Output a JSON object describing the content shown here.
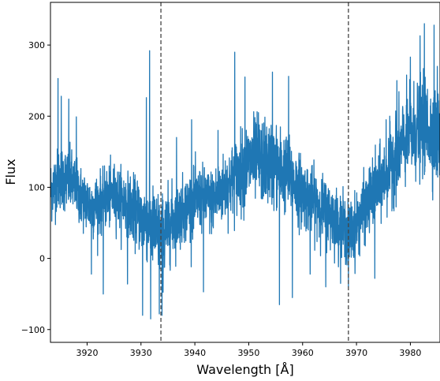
{
  "chart_data": {
    "type": "line",
    "title": "",
    "xlabel": "Wavelength [Å]",
    "ylabel": "Flux",
    "xlim": [
      3913.2,
      3985.5
    ],
    "ylim": [
      -118,
      360
    ],
    "x_ticks": [
      3920,
      3930,
      3940,
      3950,
      3960,
      3970,
      3980
    ],
    "y_ticks": [
      -100,
      0,
      100,
      200,
      300
    ],
    "x_tick_labels": [
      "3920",
      "3930",
      "3940",
      "3950",
      "3960",
      "3970",
      "3980"
    ],
    "y_tick_labels": [
      "−100",
      "0",
      "100",
      "200",
      "300"
    ],
    "grid": false,
    "legend": "none",
    "series": [
      {
        "color": "#1f77b4",
        "trend": {
          "x": [
            3913.2,
            3915,
            3917,
            3919,
            3921,
            3923,
            3925,
            3927,
            3929,
            3931,
            3933,
            3933.8,
            3935,
            3937,
            3939,
            3941,
            3943,
            3945,
            3947,
            3949,
            3951,
            3953,
            3955,
            3957,
            3959,
            3961,
            3963,
            3965,
            3967,
            3968.5,
            3969.5,
            3971,
            3973,
            3975,
            3977,
            3979,
            3981,
            3983,
            3985.5
          ],
          "y": [
            95,
            115,
            108,
            85,
            72,
            82,
            90,
            80,
            65,
            52,
            38,
            25,
            45,
            62,
            75,
            85,
            80,
            95,
            110,
            125,
            140,
            135,
            130,
            120,
            100,
            85,
            75,
            62,
            48,
            35,
            40,
            62,
            90,
            112,
            140,
            165,
            180,
            185,
            170
          ]
        },
        "noise_amplitude": [
          40,
          40,
          40,
          38,
          38,
          38,
          38,
          38,
          42,
          48,
          52,
          55,
          48,
          42,
          40,
          40,
          40,
          42,
          45,
          50,
          52,
          52,
          52,
          48,
          45,
          42,
          40,
          40,
          40,
          40,
          40,
          40,
          42,
          45,
          50,
          55,
          58,
          58,
          58
        ],
        "spikes": [
          {
            "x": 3914.6,
            "y": 253
          },
          {
            "x": 3915.2,
            "y": 228
          },
          {
            "x": 3916.6,
            "y": 224
          },
          {
            "x": 3918.0,
            "y": 199
          },
          {
            "x": 3920.8,
            "y": -22
          },
          {
            "x": 3923.0,
            "y": -50
          },
          {
            "x": 3927.5,
            "y": -36
          },
          {
            "x": 3930.3,
            "y": -80
          },
          {
            "x": 3931.0,
            "y": 226
          },
          {
            "x": 3931.6,
            "y": 292
          },
          {
            "x": 3931.8,
            "y": -85
          },
          {
            "x": 3933.4,
            "y": -78
          },
          {
            "x": 3933.9,
            "y": -80
          },
          {
            "x": 3936.6,
            "y": 170
          },
          {
            "x": 3939.4,
            "y": 195
          },
          {
            "x": 3941.6,
            "y": -47
          },
          {
            "x": 3944.3,
            "y": 180
          },
          {
            "x": 3947.4,
            "y": 290
          },
          {
            "x": 3949.3,
            "y": 255
          },
          {
            "x": 3951.8,
            "y": 205
          },
          {
            "x": 3954.4,
            "y": 262
          },
          {
            "x": 3955.7,
            "y": -65
          },
          {
            "x": 3957.4,
            "y": 256
          },
          {
            "x": 3958.1,
            "y": -55
          },
          {
            "x": 3961.4,
            "y": -22
          },
          {
            "x": 3964.3,
            "y": -40
          },
          {
            "x": 3968.5,
            "y": -40
          },
          {
            "x": 3973.4,
            "y": -28
          },
          {
            "x": 3975.5,
            "y": 195
          },
          {
            "x": 3977.5,
            "y": 250
          },
          {
            "x": 3980.0,
            "y": 283
          },
          {
            "x": 3981.8,
            "y": 313
          },
          {
            "x": 3982.6,
            "y": 330
          },
          {
            "x": 3984.4,
            "y": 328
          },
          {
            "x": 3985.0,
            "y": 270
          }
        ],
        "sample_step": 0.025
      }
    ],
    "vertical_lines": [
      {
        "x": 3933.7,
        "style": "dashed",
        "color": "#444444"
      },
      {
        "x": 3968.5,
        "style": "dashed",
        "color": "#444444"
      }
    ]
  }
}
